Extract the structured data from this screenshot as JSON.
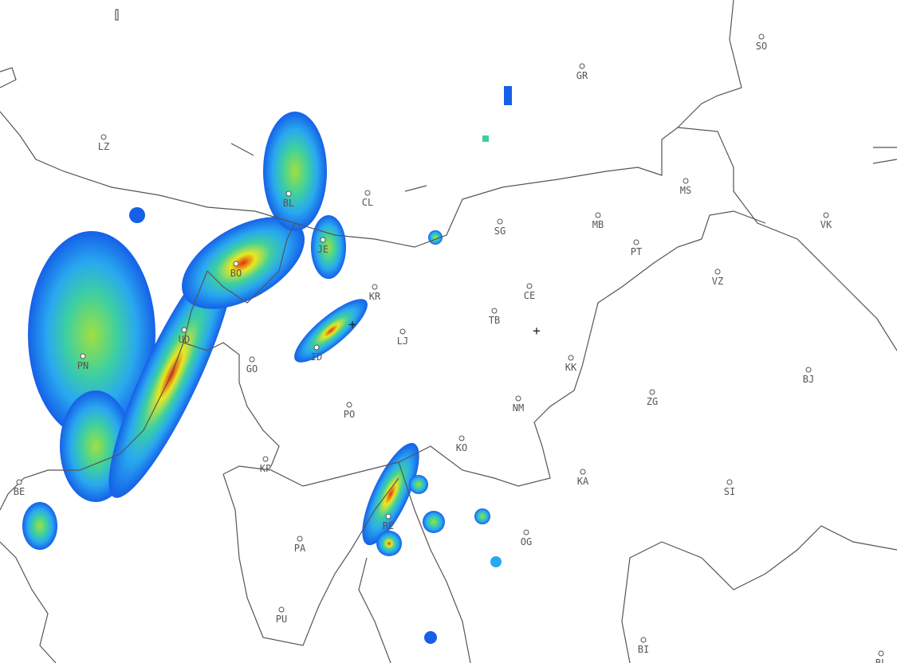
{
  "map": {
    "cities": [
      {
        "code": "SO"
      },
      {
        "code": "GR"
      },
      {
        "code": "LZ"
      },
      {
        "code": "CL"
      },
      {
        "code": "BL"
      },
      {
        "code": "MS"
      },
      {
        "code": "MB"
      },
      {
        "code": "SG"
      },
      {
        "code": "VK"
      },
      {
        "code": "JE"
      },
      {
        "code": "BO"
      },
      {
        "code": "KR"
      },
      {
        "code": "CE"
      },
      {
        "code": "PT"
      },
      {
        "code": "VZ"
      },
      {
        "code": "UD"
      },
      {
        "code": "TB"
      },
      {
        "code": "LJ"
      },
      {
        "code": "ID"
      },
      {
        "code": "PN"
      },
      {
        "code": "GO"
      },
      {
        "code": "KK"
      },
      {
        "code": "BJ"
      },
      {
        "code": "ZG"
      },
      {
        "code": "PO"
      },
      {
        "code": "NM"
      },
      {
        "code": "KO"
      },
      {
        "code": "KP"
      },
      {
        "code": "BE"
      },
      {
        "code": "KA"
      },
      {
        "code": "SI"
      },
      {
        "code": "RE"
      },
      {
        "code": "PA"
      },
      {
        "code": "OG"
      },
      {
        "code": "PU"
      },
      {
        "code": "BI"
      },
      {
        "code": "BL"
      }
    ],
    "radar_colors": {
      "low": "#1560e8",
      "light": "#29a8f0",
      "moderate": "#3dd0a0",
      "high": "#e8e820",
      "heavy": "#e83010"
    }
  }
}
